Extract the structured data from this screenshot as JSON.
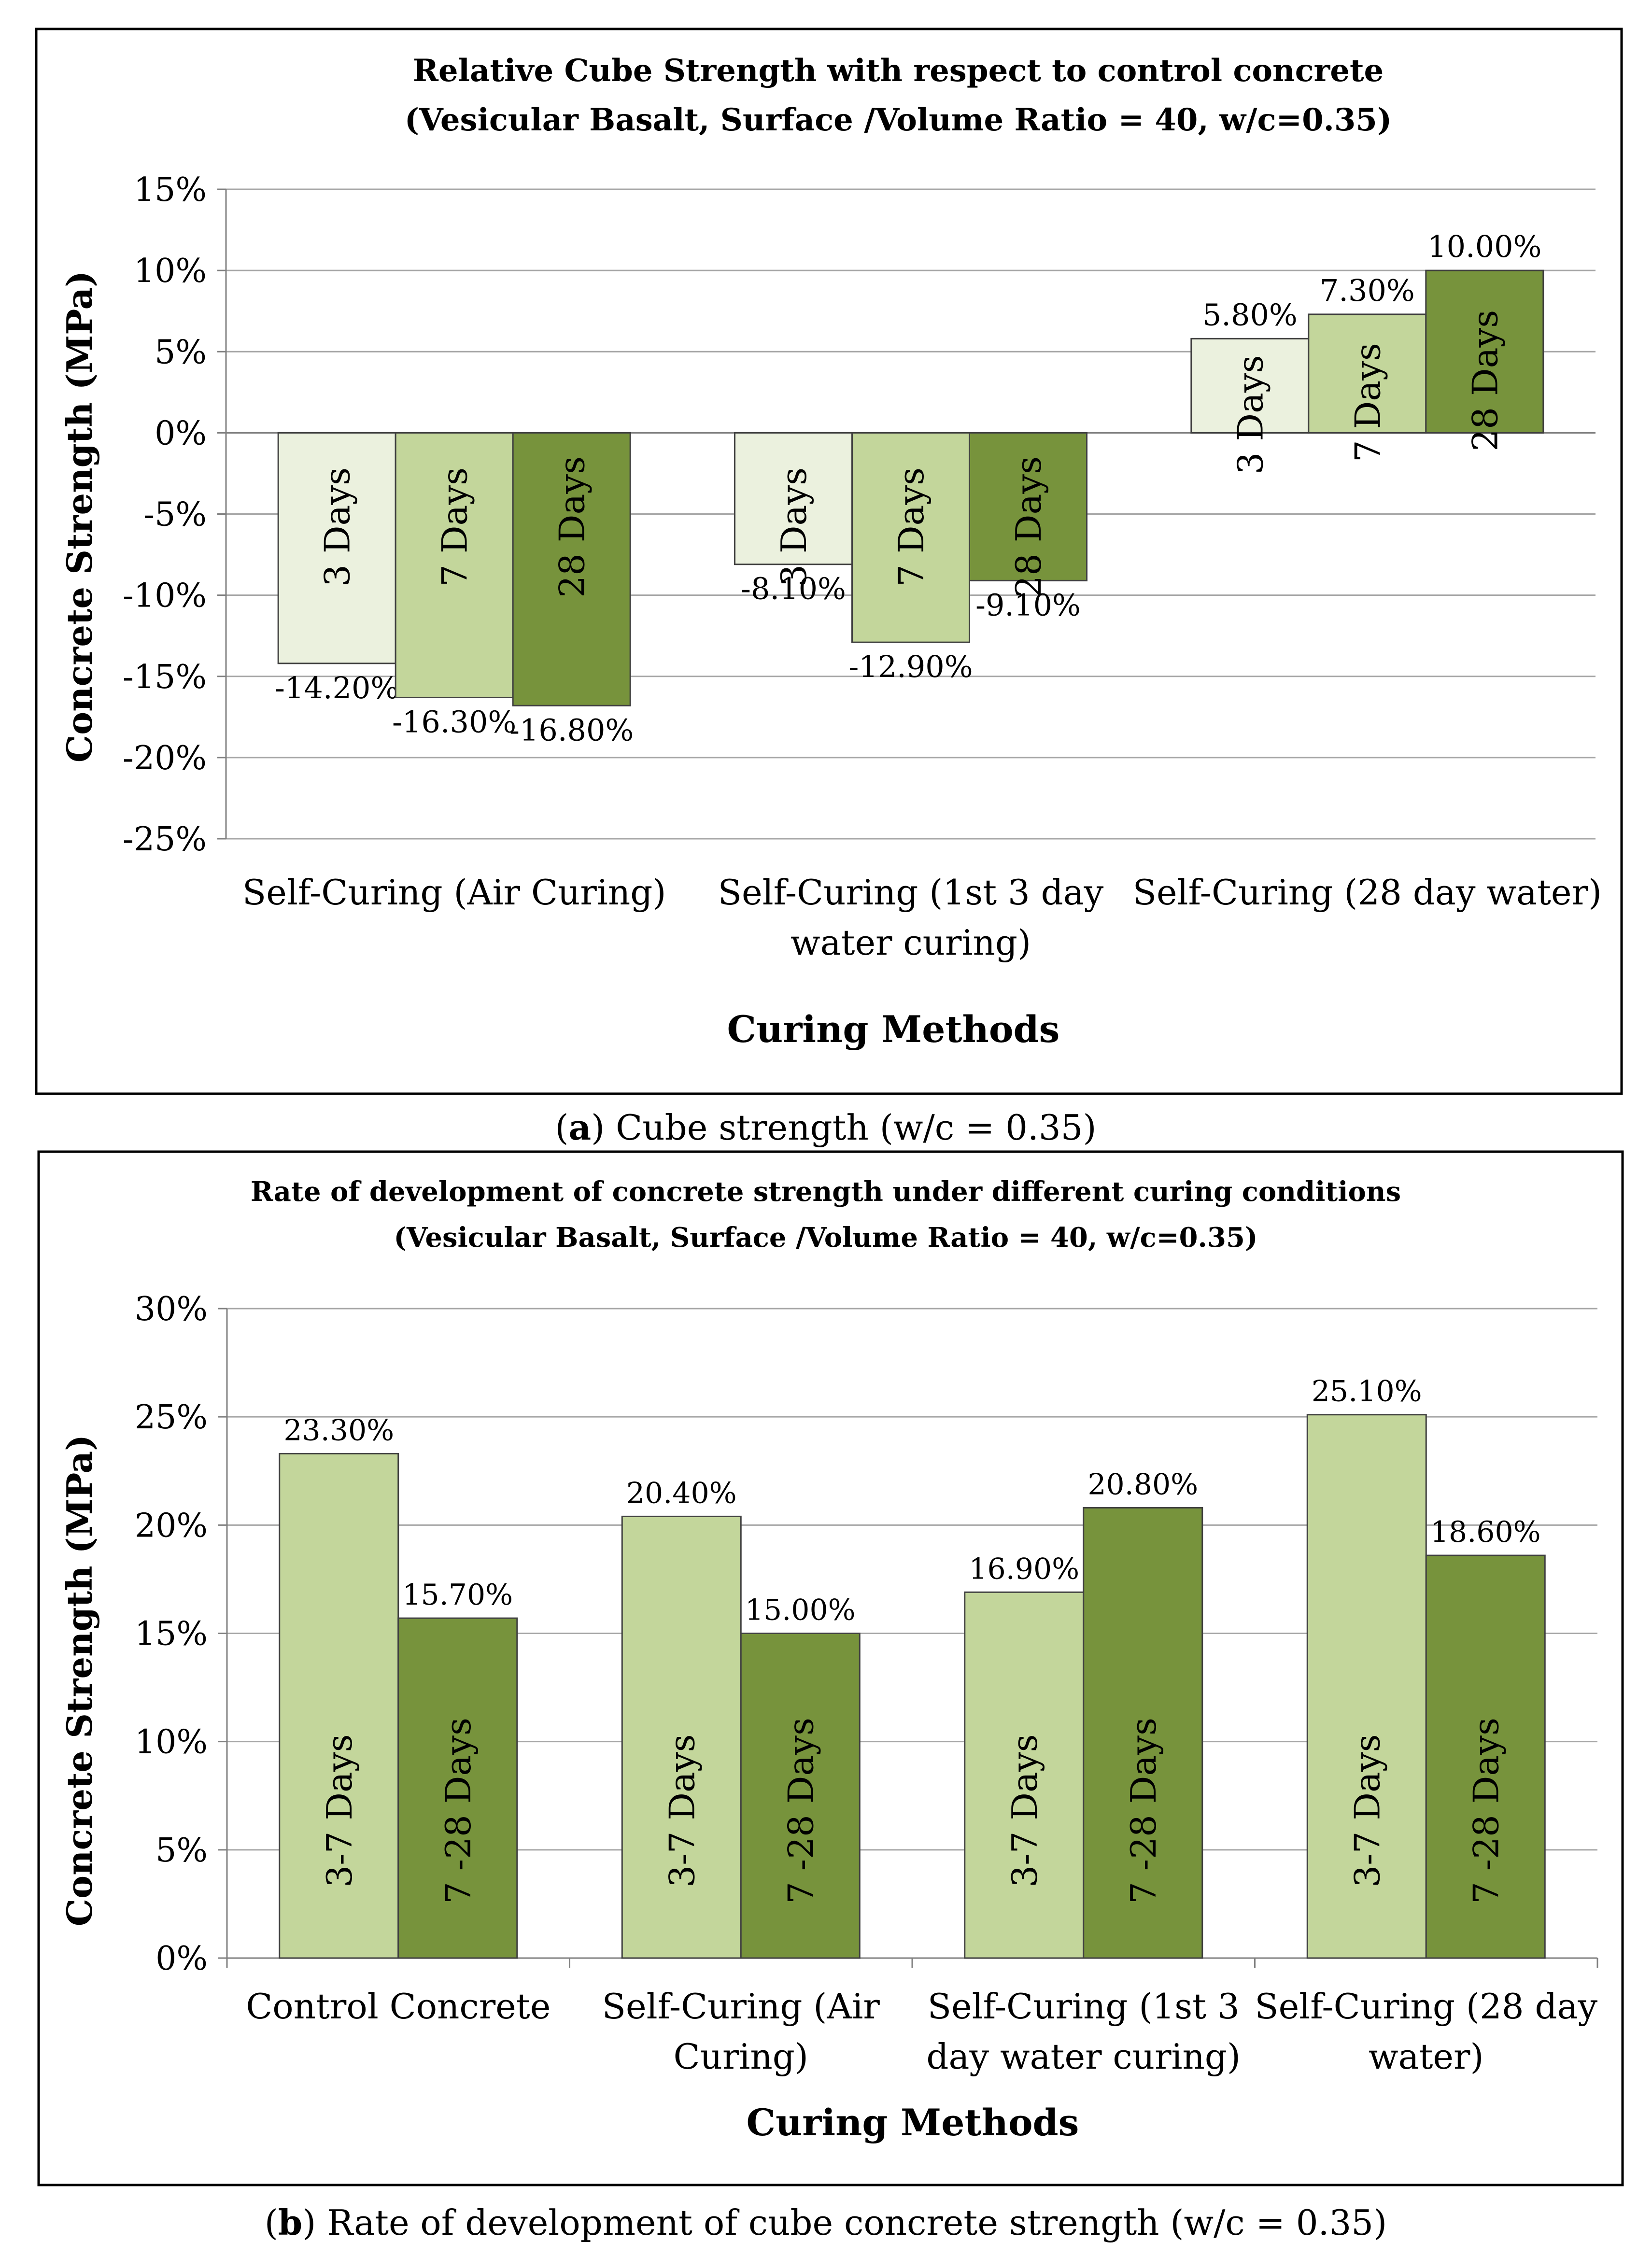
{
  "chart_data": [
    {
      "type": "bar",
      "title": "Relative Cube Strength with respect to control concrete",
      "subtitle": "(Vesicular Basalt, Surface /Volume Ratio = 40, w/c=0.35)",
      "xlabel": "Curing Methods",
      "ylabel": "Concrete Strength (MPa)",
      "ylim": [
        -25,
        15
      ],
      "yticks": [
        15,
        10,
        5,
        0,
        -5,
        -10,
        -15,
        -20,
        -25
      ],
      "ytick_labels": [
        "15%",
        "10%",
        "5%",
        "0%",
        "-5%",
        "-10%",
        "-15%",
        "-20%",
        "-25%"
      ],
      "grid": true,
      "categories": [
        [
          "Self-Curing (Air Curing)"
        ],
        [
          "Self-Curing (1st 3 day",
          "water curing)"
        ],
        [
          "Self-Curing  (28 day water)"
        ]
      ],
      "series": [
        {
          "name": "3 Days",
          "color": "#ebf1de",
          "values": [
            -14.2,
            -8.1,
            5.8
          ],
          "value_labels": [
            "-14.20%",
            "-8.10%",
            "5.80%"
          ]
        },
        {
          "name": "7 Days",
          "color": "#c3d69b",
          "values": [
            -16.3,
            -12.9,
            7.3
          ],
          "value_labels": [
            "-16.30%",
            "-12.90%",
            "7.30%"
          ]
        },
        {
          "name": "28 Days",
          "color": "#77933c",
          "values": [
            -16.8,
            -9.1,
            10.0
          ],
          "value_labels": [
            "-16.80%",
            "-9.10%",
            "10.00%"
          ]
        }
      ],
      "caption": {
        "letter": "a",
        "text": " Cube strength (w/c = 0.35)"
      }
    },
    {
      "type": "bar",
      "title": "Rate of development of concrete strength under different curing conditions",
      "subtitle": "(Vesicular Basalt, Surface /Volume Ratio = 40, w/c=0.35)",
      "xlabel": "Curing Methods",
      "ylabel": "Concrete Strength (MPa)",
      "ylim": [
        0,
        30
      ],
      "yticks": [
        30,
        25,
        20,
        15,
        10,
        5,
        0
      ],
      "ytick_labels": [
        "30%",
        "25%",
        "20%",
        "15%",
        "10%",
        "5%",
        "0%"
      ],
      "grid": true,
      "categories": [
        [
          "Control Concrete"
        ],
        [
          "Self-Curing (Air",
          "Curing)"
        ],
        [
          "Self-Curing (1st 3",
          "day water curing)"
        ],
        [
          "Self-Curing  (28 day",
          "water)"
        ]
      ],
      "series": [
        {
          "name": "3-7 Days",
          "color": "#c3d69b",
          "values": [
            23.3,
            20.4,
            16.9,
            25.1
          ],
          "value_labels": [
            "23.30%",
            "20.40%",
            "16.90%",
            "25.10%"
          ]
        },
        {
          "name": "7 -28 Days",
          "color": "#77933c",
          "values": [
            15.7,
            15.0,
            20.8,
            18.6
          ],
          "value_labels": [
            "15.70%",
            "15.00%",
            "20.80%",
            "18.60%"
          ]
        }
      ],
      "caption": {
        "letter": "b",
        "text": " Rate of development of cube concrete strength (w/c = 0.35)"
      }
    }
  ]
}
